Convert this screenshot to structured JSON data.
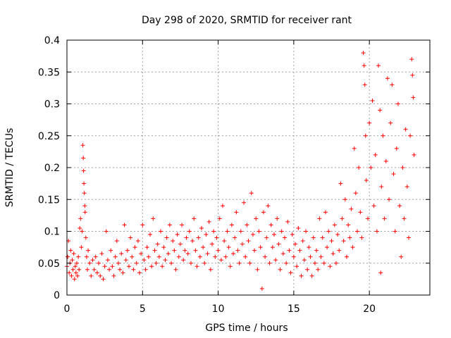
{
  "chart_data": {
    "type": "scatter",
    "title": "Day 298 of 2020, SRMTID for receiver rant",
    "xlabel": "GPS time / hours",
    "ylabel": "SRMTID / TECUs",
    "xlim": [
      0,
      24
    ],
    "ylim": [
      0,
      0.4
    ],
    "grid": true,
    "marker": "plus",
    "color": "#ff0000",
    "x_ticks": [
      0,
      5,
      10,
      15,
      20
    ],
    "x_tick_labels": [
      "0",
      "5",
      "10",
      "15",
      "20"
    ],
    "y_ticks": [
      0,
      0.05,
      0.1,
      0.15,
      0.2,
      0.25,
      0.3,
      0.35,
      0.4
    ],
    "y_tick_labels": [
      "0",
      "0.05",
      "0.1",
      "0.15",
      "0.2",
      "0.25",
      "0.3",
      "0.35",
      "0.4"
    ],
    "series": [
      {
        "name": "SRMTID",
        "points": [
          [
            0.0,
            0.045
          ],
          [
            0.05,
            0.06
          ],
          [
            0.1,
            0.085
          ],
          [
            0.15,
            0.035
          ],
          [
            0.2,
            0.05
          ],
          [
            0.25,
            0.07
          ],
          [
            0.3,
            0.03
          ],
          [
            0.35,
            0.055
          ],
          [
            0.4,
            0.04
          ],
          [
            0.45,
            0.065
          ],
          [
            0.5,
            0.025
          ],
          [
            0.55,
            0.045
          ],
          [
            0.6,
            0.035
          ],
          [
            0.65,
            0.05
          ],
          [
            0.7,
            0.03
          ],
          [
            0.75,
            0.06
          ],
          [
            0.8,
            0.04
          ],
          [
            0.85,
            0.105
          ],
          [
            0.9,
            0.12
          ],
          [
            0.95,
            0.075
          ],
          [
            1.0,
            0.1
          ],
          [
            1.05,
            0.235
          ],
          [
            1.08,
            0.215
          ],
          [
            1.1,
            0.195
          ],
          [
            1.12,
            0.175
          ],
          [
            1.15,
            0.16
          ],
          [
            1.18,
            0.14
          ],
          [
            1.2,
            0.13
          ],
          [
            1.25,
            0.09
          ],
          [
            1.3,
            0.06
          ],
          [
            1.35,
            0.04
          ],
          [
            1.4,
            0.07
          ],
          [
            1.5,
            0.05
          ],
          [
            1.6,
            0.03
          ],
          [
            1.7,
            0.055
          ],
          [
            1.8,
            0.04
          ],
          [
            1.9,
            0.06
          ],
          [
            2.0,
            0.035
          ],
          [
            2.1,
            0.05
          ],
          [
            2.2,
            0.03
          ],
          [
            2.3,
            0.065
          ],
          [
            2.4,
            0.025
          ],
          [
            2.5,
            0.045
          ],
          [
            2.6,
            0.1
          ],
          [
            2.7,
            0.055
          ],
          [
            2.8,
            0.04
          ],
          [
            2.9,
            0.07
          ],
          [
            3.0,
            0.045
          ],
          [
            3.1,
            0.03
          ],
          [
            3.2,
            0.06
          ],
          [
            3.3,
            0.085
          ],
          [
            3.4,
            0.05
          ],
          [
            3.5,
            0.04
          ],
          [
            3.6,
            0.065
          ],
          [
            3.7,
            0.035
          ],
          [
            3.8,
            0.11
          ],
          [
            3.9,
            0.055
          ],
          [
            4.0,
            0.07
          ],
          [
            4.1,
            0.045
          ],
          [
            4.2,
            0.09
          ],
          [
            4.3,
            0.06
          ],
          [
            4.4,
            0.04
          ],
          [
            4.5,
            0.075
          ],
          [
            4.6,
            0.05
          ],
          [
            4.7,
            0.085
          ],
          [
            4.8,
            0.035
          ],
          [
            4.9,
            0.065
          ],
          [
            5.0,
            0.11
          ],
          [
            5.1,
            0.055
          ],
          [
            5.2,
            0.04
          ],
          [
            5.3,
            0.075
          ],
          [
            5.4,
            0.06
          ],
          [
            5.5,
            0.095
          ],
          [
            5.6,
            0.045
          ],
          [
            5.7,
            0.12
          ],
          [
            5.8,
            0.07
          ],
          [
            5.9,
            0.05
          ],
          [
            6.0,
            0.08
          ],
          [
            6.1,
            0.06
          ],
          [
            6.2,
            0.1
          ],
          [
            6.3,
            0.045
          ],
          [
            6.4,
            0.075
          ],
          [
            6.5,
            0.055
          ],
          [
            6.6,
            0.09
          ],
          [
            6.7,
            0.065
          ],
          [
            6.8,
            0.11
          ],
          [
            6.9,
            0.05
          ],
          [
            7.0,
            0.085
          ],
          [
            7.1,
            0.07
          ],
          [
            7.2,
            0.04
          ],
          [
            7.3,
            0.095
          ],
          [
            7.4,
            0.06
          ],
          [
            7.5,
            0.08
          ],
          [
            7.6,
            0.11
          ],
          [
            7.7,
            0.055
          ],
          [
            7.8,
            0.07
          ],
          [
            7.9,
            0.09
          ],
          [
            8.0,
            0.065
          ],
          [
            8.1,
            0.1
          ],
          [
            8.2,
            0.05
          ],
          [
            8.3,
            0.085
          ],
          [
            8.4,
            0.12
          ],
          [
            8.5,
            0.07
          ],
          [
            8.6,
            0.045
          ],
          [
            8.7,
            0.09
          ],
          [
            8.8,
            0.06
          ],
          [
            8.9,
            0.105
          ],
          [
            9.0,
            0.075
          ],
          [
            9.1,
            0.05
          ],
          [
            9.2,
            0.095
          ],
          [
            9.3,
            0.065
          ],
          [
            9.4,
            0.115
          ],
          [
            9.5,
            0.04
          ],
          [
            9.6,
            0.08
          ],
          [
            9.7,
            0.1
          ],
          [
            9.8,
            0.06
          ],
          [
            9.9,
            0.09
          ],
          [
            10.0,
            0.07
          ],
          [
            10.1,
            0.12
          ],
          [
            10.2,
            0.055
          ],
          [
            10.3,
            0.14
          ],
          [
            10.4,
            0.085
          ],
          [
            10.5,
            0.06
          ],
          [
            10.6,
            0.1
          ],
          [
            10.7,
            0.075
          ],
          [
            10.8,
            0.045
          ],
          [
            10.9,
            0.11
          ],
          [
            11.0,
            0.065
          ],
          [
            11.1,
            0.09
          ],
          [
            11.2,
            0.13
          ],
          [
            11.3,
            0.07
          ],
          [
            11.4,
            0.05
          ],
          [
            11.5,
            0.1
          ],
          [
            11.6,
            0.08
          ],
          [
            11.7,
            0.145
          ],
          [
            11.8,
            0.06
          ],
          [
            11.9,
            0.11
          ],
          [
            12.0,
            0.085
          ],
          [
            12.1,
            0.05
          ],
          [
            12.2,
            0.16
          ],
          [
            12.3,
            0.095
          ],
          [
            12.4,
            0.07
          ],
          [
            12.5,
            0.12
          ],
          [
            12.6,
            0.04
          ],
          [
            12.7,
            0.1
          ],
          [
            12.8,
            0.075
          ],
          [
            12.9,
            0.01
          ],
          [
            13.0,
            0.13
          ],
          [
            13.1,
            0.06
          ],
          [
            13.2,
            0.09
          ],
          [
            13.3,
            0.14
          ],
          [
            13.4,
            0.05
          ],
          [
            13.5,
            0.11
          ],
          [
            13.6,
            0.075
          ],
          [
            13.7,
            0.095
          ],
          [
            13.8,
            0.055
          ],
          [
            13.9,
            0.12
          ],
          [
            14.0,
            0.08
          ],
          [
            14.1,
            0.04
          ],
          [
            14.2,
            0.1
          ],
          [
            14.3,
            0.065
          ],
          [
            14.4,
            0.09
          ],
          [
            14.5,
            0.05
          ],
          [
            14.6,
            0.115
          ],
          [
            14.7,
            0.07
          ],
          [
            14.8,
            0.035
          ],
          [
            14.9,
            0.095
          ],
          [
            15.0,
            0.06
          ],
          [
            15.1,
            0.08
          ],
          [
            15.2,
            0.045
          ],
          [
            15.3,
            0.105
          ],
          [
            15.4,
            0.07
          ],
          [
            15.5,
            0.03
          ],
          [
            15.6,
            0.085
          ],
          [
            15.7,
            0.055
          ],
          [
            15.8,
            0.1
          ],
          [
            15.9,
            0.04
          ],
          [
            16.0,
            0.075
          ],
          [
            16.1,
            0.06
          ],
          [
            16.2,
            0.03
          ],
          [
            16.3,
            0.09
          ],
          [
            16.4,
            0.05
          ],
          [
            16.5,
            0.07
          ],
          [
            16.6,
            0.04
          ],
          [
            16.7,
            0.12
          ],
          [
            16.8,
            0.06
          ],
          [
            16.9,
            0.09
          ],
          [
            17.0,
            0.05
          ],
          [
            17.1,
            0.13
          ],
          [
            17.2,
            0.075
          ],
          [
            17.3,
            0.1
          ],
          [
            17.4,
            0.045
          ],
          [
            17.5,
            0.085
          ],
          [
            17.6,
            0.065
          ],
          [
            17.7,
            0.11
          ],
          [
            17.8,
            0.05
          ],
          [
            17.9,
            0.095
          ],
          [
            18.0,
            0.07
          ],
          [
            18.1,
            0.175
          ],
          [
            18.2,
            0.12
          ],
          [
            18.3,
            0.085
          ],
          [
            18.4,
            0.15
          ],
          [
            18.5,
            0.06
          ],
          [
            18.6,
            0.11
          ],
          [
            18.7,
            0.09
          ],
          [
            18.8,
            0.135
          ],
          [
            18.9,
            0.075
          ],
          [
            19.0,
            0.23
          ],
          [
            19.1,
            0.16
          ],
          [
            19.2,
            0.1
          ],
          [
            19.3,
            0.2
          ],
          [
            19.4,
            0.13
          ],
          [
            19.5,
            0.09
          ],
          [
            19.6,
            0.38
          ],
          [
            19.65,
            0.36
          ],
          [
            19.7,
            0.33
          ],
          [
            19.75,
            0.25
          ],
          [
            19.8,
            0.18
          ],
          [
            19.9,
            0.12
          ],
          [
            20.0,
            0.27
          ],
          [
            20.1,
            0.2
          ],
          [
            20.2,
            0.305
          ],
          [
            20.3,
            0.14
          ],
          [
            20.4,
            0.22
          ],
          [
            20.5,
            0.1
          ],
          [
            20.6,
            0.36
          ],
          [
            20.7,
            0.29
          ],
          [
            20.75,
            0.035
          ],
          [
            20.8,
            0.17
          ],
          [
            20.9,
            0.25
          ],
          [
            21.0,
            0.12
          ],
          [
            21.1,
            0.21
          ],
          [
            21.2,
            0.34
          ],
          [
            21.3,
            0.15
          ],
          [
            21.4,
            0.27
          ],
          [
            21.5,
            0.33
          ],
          [
            21.6,
            0.19
          ],
          [
            21.7,
            0.1
          ],
          [
            21.8,
            0.23
          ],
          [
            21.9,
            0.3
          ],
          [
            22.0,
            0.14
          ],
          [
            22.1,
            0.06
          ],
          [
            22.2,
            0.2
          ],
          [
            22.3,
            0.12
          ],
          [
            22.4,
            0.26
          ],
          [
            22.5,
            0.17
          ],
          [
            22.6,
            0.09
          ],
          [
            22.7,
            0.25
          ],
          [
            22.8,
            0.37
          ],
          [
            22.85,
            0.345
          ],
          [
            22.9,
            0.31
          ],
          [
            22.95,
            0.22
          ]
        ]
      }
    ]
  }
}
